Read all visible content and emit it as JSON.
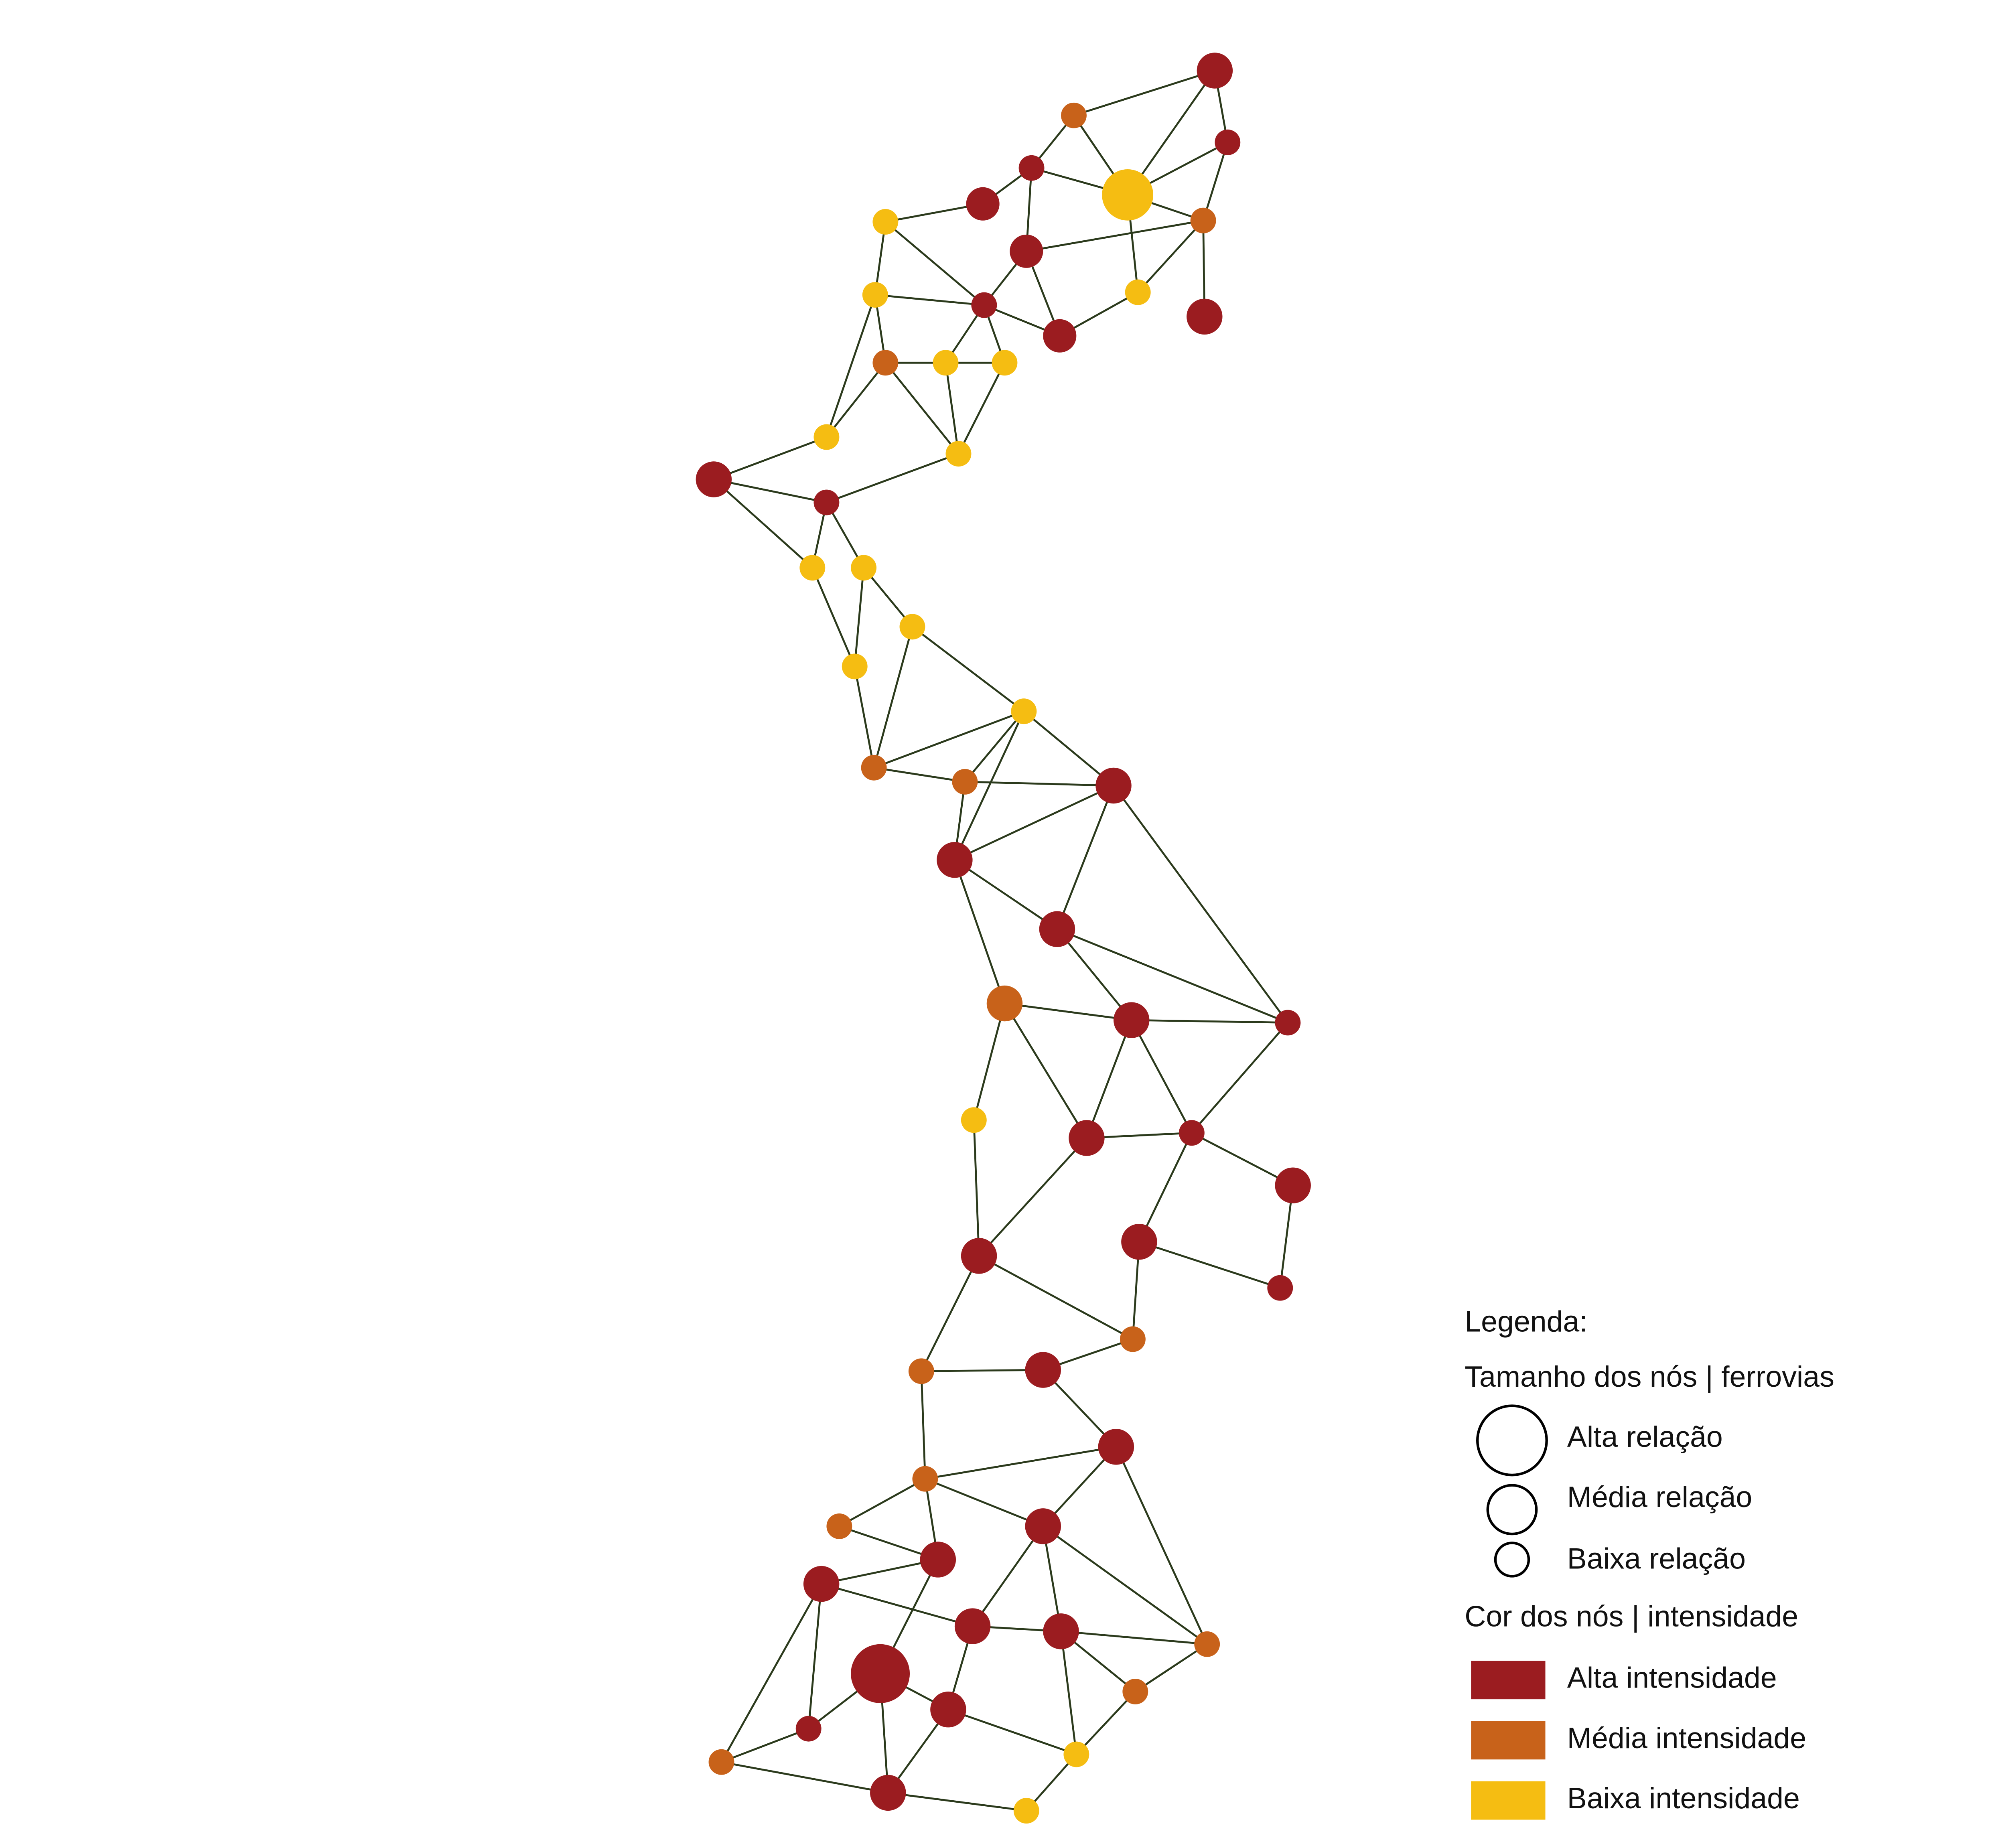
{
  "legend": {
    "title": "Legenda:",
    "size": {
      "title": "Tamanho dos nós | ferrovias",
      "items": [
        "Alta relação",
        "Média relação",
        "Baixa relação"
      ]
    },
    "color": {
      "title": "Cor dos nós | intensidade",
      "items": [
        {
          "label": "Alta intensidade",
          "color": "#9b1c20"
        },
        {
          "label": "Média intensidade",
          "color": "#c8621a"
        },
        {
          "label": "Baixa intensidade",
          "color": "#f5bd12"
        }
      ]
    }
  }
}
